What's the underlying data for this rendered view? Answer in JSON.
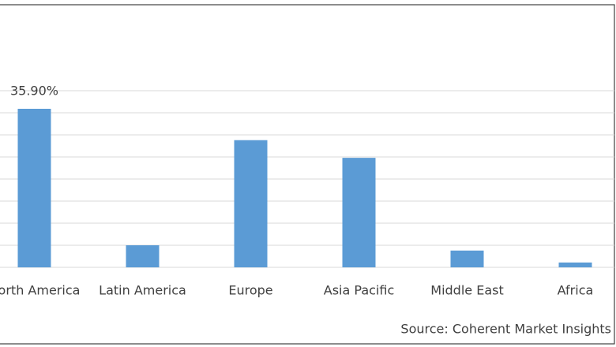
{
  "chart_data": {
    "type": "bar",
    "categories": [
      "North America",
      "Latin America",
      "Europe",
      "Asia Pacific",
      "Middle East",
      "Africa"
    ],
    "values": [
      35.9,
      5.0,
      28.8,
      24.8,
      3.8,
      1.1
    ],
    "value_labels": [
      "35.90%",
      null,
      null,
      null,
      null,
      null
    ],
    "color": "#5b9bd5",
    "ylim": [
      0,
      45
    ],
    "yticks": [
      0,
      5,
      10,
      15,
      20,
      25,
      30,
      35,
      40
    ],
    "grid": true,
    "source": "Source: Coherent Market Insights"
  }
}
